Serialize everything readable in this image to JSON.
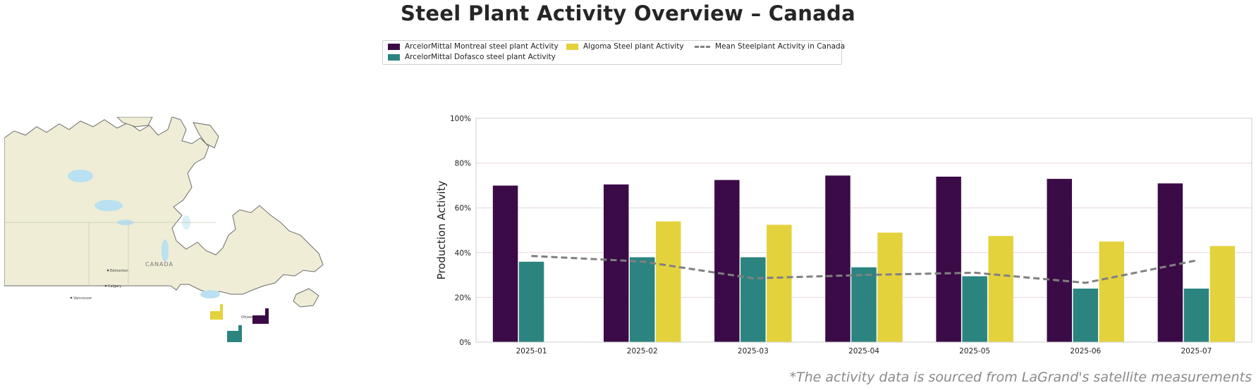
{
  "title": "Steel Plant Activity Overview – Canada",
  "source_note": "*The activity data is sourced from LaGrand's satellite measurements",
  "map": {
    "country_label": "CANADA",
    "place_labels": [
      "Edmonton",
      "Calgary",
      "Vancouver",
      "Ottawa"
    ],
    "colors": {
      "land": "#efedd6",
      "water": "#b9e1f1",
      "outline": "#6d6d6d"
    },
    "plant_icons": [
      {
        "name": "ArcelorMittal Montreal",
        "color": "#3b0b47"
      },
      {
        "name": "ArcelorMittal Dofasco",
        "color": "#2b8480"
      },
      {
        "name": "Algoma Steel",
        "color": "#e3d23c"
      }
    ]
  },
  "chart_data": {
    "type": "bar",
    "categories": [
      "2025-01",
      "2025-02",
      "2025-03",
      "2025-04",
      "2025-05",
      "2025-06",
      "2025-07"
    ],
    "series": [
      {
        "name": "ArcelorMittal Montreal steel plant Activity",
        "color": "#3b0b47",
        "values": [
          70,
          70.5,
          72.5,
          74.5,
          74,
          73,
          71
        ]
      },
      {
        "name": "ArcelorMittal Dofasco steel plant Activity",
        "color": "#2b8480",
        "values": [
          36,
          38,
          38,
          33.5,
          29.5,
          24,
          24
        ]
      },
      {
        "name": "Algoma Steel plant Activity",
        "color": "#e3d23c",
        "values": [
          null,
          54,
          52.5,
          49,
          47.5,
          45,
          43
        ]
      }
    ],
    "mean_line": {
      "name": "Mean Steelplant Activity in Canada",
      "color": "#808080",
      "values": [
        38.5,
        36,
        28.5,
        30,
        31,
        26.5,
        36.5
      ]
    },
    "ylabel": "Production Activity",
    "xlabel": "",
    "ylim": [
      0,
      100
    ],
    "yticks": [
      0,
      20,
      40,
      60,
      80,
      100
    ],
    "ytick_labels": [
      "0%",
      "20%",
      "40%",
      "60%",
      "80%",
      "100%"
    ],
    "grid": true,
    "legend_position": "top-center"
  }
}
